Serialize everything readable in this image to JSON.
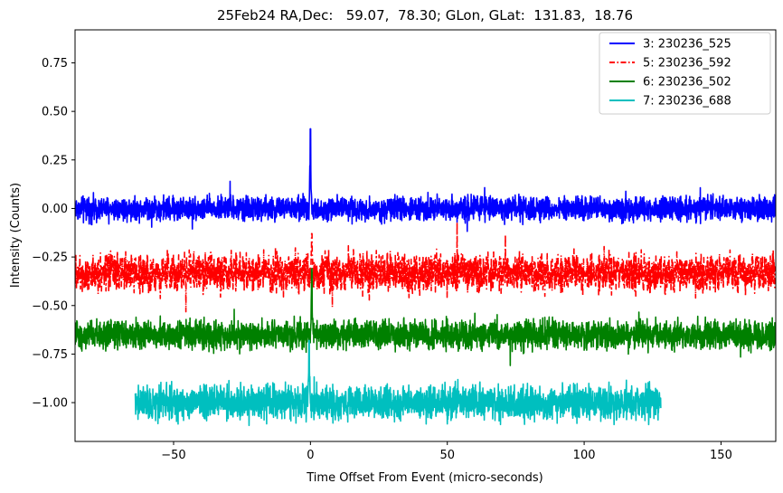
{
  "chart_data": {
    "type": "line",
    "title": "25Feb24 RA,Dec:   59.07,  78.30; GLon, GLat:  131.83,  18.76",
    "xlabel": "Time Offset From Event (micro-seconds)",
    "ylabel": "Intensity (Counts)",
    "xlim": [
      -86,
      170
    ],
    "ylim": [
      -1.2,
      0.92
    ],
    "xticks": [
      -50,
      0,
      50,
      100,
      150
    ],
    "xtick_labels": [
      "−50",
      "0",
      "50",
      "100",
      "150"
    ],
    "yticks": [
      0.75,
      0.5,
      0.25,
      0.0,
      -0.25,
      -0.5,
      -0.75,
      -1.0
    ],
    "ytick_labels": [
      "0.75",
      "0.50",
      "0.25",
      "0.00",
      "−0.25",
      "−0.50",
      "−0.75",
      "−1.00"
    ],
    "legend_position": "top-right",
    "series": [
      {
        "name": "3: 230236_525",
        "color": "#0000ff",
        "dash": "solid",
        "x_range": [
          -86,
          170
        ],
        "baseline": 0.0,
        "noise_amplitude": 0.05,
        "spike": {
          "x": 0.0,
          "peak": 0.41
        }
      },
      {
        "name": "5: 230236_592",
        "color": "#ff0000",
        "dash": "dashdot",
        "x_range": [
          -86,
          170
        ],
        "baseline": -0.33,
        "noise_amplitude": 0.08,
        "spike": {
          "x": 0.5,
          "peak": -0.13
        }
      },
      {
        "name": "6: 230236_502",
        "color": "#008000",
        "dash": "solid",
        "x_range": [
          -86,
          170
        ],
        "baseline": -0.65,
        "noise_amplitude": 0.06,
        "spike": {
          "x": 0.5,
          "peak": -0.31
        }
      },
      {
        "name": "7: 230236_688",
        "color": "#00bfbf",
        "dash": "solid",
        "x_range": [
          -64,
          128
        ],
        "baseline": -1.0,
        "noise_amplitude": 0.07,
        "spike": {
          "x": -0.5,
          "peak": -0.68
        }
      }
    ]
  }
}
